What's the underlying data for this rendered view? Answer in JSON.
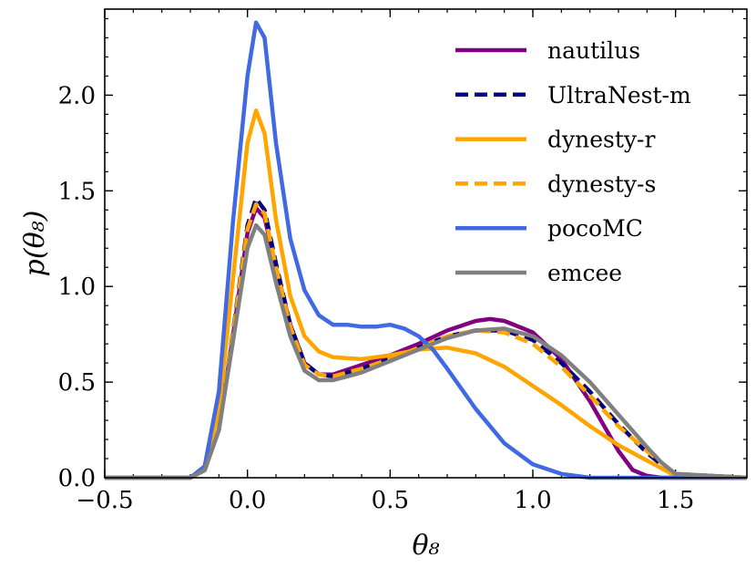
{
  "chart_data": {
    "type": "line",
    "title": "",
    "xlabel": "θ₈",
    "ylabel": "p(θ₈)",
    "xlim": [
      -0.5,
      1.75
    ],
    "ylim": [
      0,
      2.45
    ],
    "x_ticks": [
      -0.5,
      0.0,
      0.5,
      1.0,
      1.5
    ],
    "x_tick_labels": [
      "−0.5",
      "0.0",
      "0.5",
      "1.0",
      "1.5"
    ],
    "y_ticks": [
      0.0,
      0.5,
      1.0,
      1.5,
      2.0
    ],
    "y_tick_labels": [
      "0.0",
      "0.5",
      "1.0",
      "1.5",
      "2.0"
    ],
    "grid": false,
    "legend_position": "top-right",
    "series": [
      {
        "name": "nautilus",
        "color": "#800080",
        "dash": "solid",
        "x": [
          -0.5,
          -0.2,
          -0.15,
          -0.1,
          -0.05,
          0.0,
          0.03,
          0.06,
          0.1,
          0.15,
          0.2,
          0.25,
          0.3,
          0.4,
          0.5,
          0.6,
          0.7,
          0.8,
          0.85,
          0.9,
          1.0,
          1.1,
          1.2,
          1.3,
          1.35,
          1.4,
          1.45,
          1.5,
          1.75
        ],
        "y": [
          0,
          0,
          0.04,
          0.25,
          0.75,
          1.28,
          1.41,
          1.36,
          1.1,
          0.8,
          0.6,
          0.54,
          0.54,
          0.59,
          0.64,
          0.7,
          0.77,
          0.82,
          0.83,
          0.82,
          0.76,
          0.62,
          0.4,
          0.14,
          0.04,
          0.01,
          0,
          0,
          0
        ]
      },
      {
        "name": "UltraNest-m",
        "color": "#000080",
        "dash": "dashed",
        "x": [
          -0.5,
          -0.2,
          -0.15,
          -0.1,
          -0.05,
          0.0,
          0.03,
          0.06,
          0.1,
          0.15,
          0.2,
          0.25,
          0.3,
          0.4,
          0.5,
          0.6,
          0.7,
          0.8,
          0.9,
          1.0,
          1.1,
          1.2,
          1.3,
          1.4,
          1.45,
          1.5,
          1.75
        ],
        "y": [
          0,
          0,
          0.04,
          0.25,
          0.77,
          1.32,
          1.46,
          1.4,
          1.12,
          0.8,
          0.6,
          0.54,
          0.53,
          0.57,
          0.62,
          0.68,
          0.74,
          0.77,
          0.77,
          0.72,
          0.6,
          0.45,
          0.28,
          0.13,
          0.07,
          0.02,
          0
        ]
      },
      {
        "name": "dynesty-r",
        "color": "#FFA500",
        "dash": "solid",
        "x": [
          -0.5,
          -0.2,
          -0.15,
          -0.1,
          -0.05,
          0.0,
          0.03,
          0.06,
          0.1,
          0.15,
          0.2,
          0.25,
          0.3,
          0.4,
          0.5,
          0.6,
          0.7,
          0.8,
          0.9,
          1.0,
          1.1,
          1.2,
          1.3,
          1.4,
          1.45,
          1.5,
          1.75
        ],
        "y": [
          0,
          0,
          0.05,
          0.35,
          1.05,
          1.75,
          1.92,
          1.8,
          1.35,
          0.95,
          0.74,
          0.66,
          0.63,
          0.62,
          0.64,
          0.67,
          0.68,
          0.65,
          0.58,
          0.48,
          0.38,
          0.27,
          0.17,
          0.09,
          0.05,
          0.01,
          0
        ]
      },
      {
        "name": "dynesty-s",
        "color": "#FFA500",
        "dash": "dashed",
        "x": [
          -0.5,
          -0.2,
          -0.15,
          -0.1,
          -0.05,
          0.0,
          0.03,
          0.06,
          0.1,
          0.15,
          0.2,
          0.25,
          0.3,
          0.4,
          0.5,
          0.6,
          0.7,
          0.8,
          0.9,
          1.0,
          1.1,
          1.2,
          1.3,
          1.4,
          1.45,
          1.5,
          1.75
        ],
        "y": [
          0,
          0,
          0.04,
          0.25,
          0.76,
          1.3,
          1.43,
          1.38,
          1.1,
          0.79,
          0.59,
          0.54,
          0.53,
          0.57,
          0.62,
          0.68,
          0.74,
          0.77,
          0.76,
          0.7,
          0.58,
          0.43,
          0.27,
          0.14,
          0.08,
          0.02,
          0
        ]
      },
      {
        "name": "pocoMC",
        "color": "#4169E1",
        "dash": "solid",
        "x": [
          -0.5,
          -0.2,
          -0.15,
          -0.1,
          -0.05,
          0.0,
          0.03,
          0.06,
          0.1,
          0.15,
          0.2,
          0.25,
          0.3,
          0.35,
          0.4,
          0.45,
          0.5,
          0.55,
          0.6,
          0.65,
          0.7,
          0.8,
          0.9,
          1.0,
          1.1,
          1.2,
          1.75
        ],
        "y": [
          0,
          0,
          0.06,
          0.45,
          1.35,
          2.1,
          2.38,
          2.3,
          1.75,
          1.25,
          0.98,
          0.85,
          0.8,
          0.8,
          0.79,
          0.79,
          0.8,
          0.78,
          0.74,
          0.67,
          0.57,
          0.36,
          0.18,
          0.07,
          0.02,
          0,
          0
        ]
      },
      {
        "name": "emcee",
        "color": "#808080",
        "dash": "solid",
        "x": [
          -0.5,
          -0.2,
          -0.15,
          -0.1,
          -0.05,
          0.0,
          0.03,
          0.06,
          0.1,
          0.15,
          0.2,
          0.25,
          0.3,
          0.4,
          0.5,
          0.6,
          0.7,
          0.8,
          0.9,
          1.0,
          1.1,
          1.2,
          1.3,
          1.4,
          1.45,
          1.5,
          1.75
        ],
        "y": [
          0,
          0,
          0.04,
          0.25,
          0.72,
          1.2,
          1.32,
          1.27,
          1.02,
          0.74,
          0.56,
          0.51,
          0.51,
          0.55,
          0.61,
          0.67,
          0.73,
          0.77,
          0.78,
          0.74,
          0.64,
          0.5,
          0.33,
          0.16,
          0.08,
          0.02,
          0
        ]
      }
    ]
  }
}
